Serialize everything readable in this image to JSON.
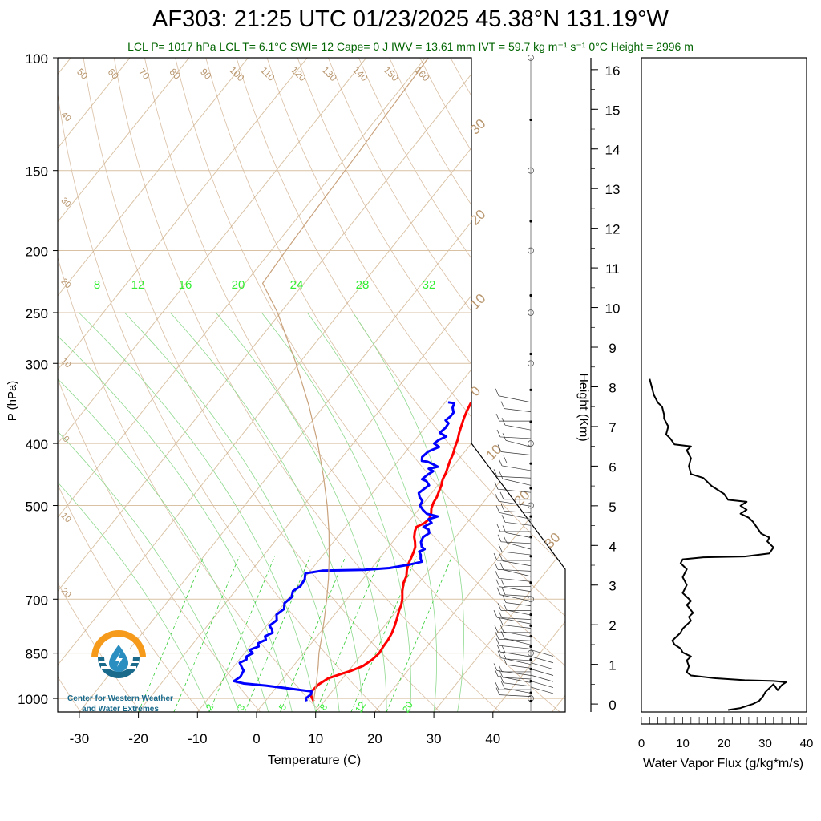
{
  "title": "AF303: 21:25 UTC 01/23/2025  45.38°N 131.19°W",
  "subtitle": "LCL P= 1017 hPa  LCL T= 6.1°C  SWI= 12  Cape= 0 J  IWV = 13.61 mm  IVT = 59.7 kg m⁻¹ s⁻¹  0°C Height = 2996 m",
  "logo": {
    "line1": "Center for Western Weather",
    "line2": "and Water Extremes",
    "colors": {
      "sun": "#f59a1b",
      "water": "#1a6a8c",
      "drop": "#2a8fc0"
    }
  },
  "colors": {
    "temperature": "#ff0000",
    "dewpoint": "#0000ff",
    "isotherm": "#d9c2a4",
    "dry_adiabat": "#c9a27c",
    "moist_adiabat": "#8fd98f",
    "mixing_ratio": "#33cc33",
    "subtitle": "#006400",
    "label_tan": "#b8966e",
    "label_green": "#33ee33"
  },
  "chart_data": [
    {
      "type": "line",
      "name": "skew-t",
      "xlabel": "Temperature (C)",
      "ylabel": "P (hPa)",
      "x_ticks": [
        -30,
        -20,
        -10,
        0,
        10,
        20,
        30,
        40
      ],
      "y_ticks": [
        100,
        150,
        200,
        250,
        300,
        400,
        500,
        700,
        850,
        1000
      ],
      "xlim": [
        -34,
        52
      ],
      "ylim": [
        1050,
        100
      ],
      "y_scale": "log",
      "isotherm_labels": [
        "50",
        "60",
        "70",
        "80",
        "90",
        "100",
        "110",
        "120",
        "130",
        "140",
        "150",
        "160"
      ],
      "right_labels": [
        "30",
        "20",
        "10",
        "0",
        "10",
        "20",
        "30"
      ],
      "left_labels": [
        "40",
        "30",
        "20",
        "10",
        "0",
        "10",
        "20"
      ],
      "mixing_top_labels": [
        "8",
        "12",
        "16",
        "20",
        "24",
        "28",
        "32"
      ],
      "mixing_bottom_labels": [
        "2",
        "3",
        "5",
        "8",
        "12",
        "20"
      ],
      "series": [
        {
          "name": "Temperature",
          "points": [
            [
              8.2,
              1010
            ],
            [
              7.0,
              990
            ],
            [
              6.5,
              975
            ],
            [
              6.8,
              950
            ],
            [
              7.6,
              930
            ],
            [
              9.3,
              915
            ],
            [
              10.5,
              905
            ],
            [
              11.8,
              890
            ],
            [
              12.5,
              870
            ],
            [
              12.8,
              850
            ],
            [
              12.6,
              830
            ],
            [
              12.5,
              810
            ],
            [
              12.2,
              790
            ],
            [
              11.7,
              770
            ],
            [
              11.1,
              750
            ],
            [
              10.4,
              730
            ],
            [
              10.0,
              715
            ],
            [
              9.4,
              700
            ],
            [
              8.3,
              680
            ],
            [
              7.4,
              660
            ],
            [
              7.0,
              645
            ],
            [
              6.2,
              630
            ],
            [
              5.6,
              615
            ],
            [
              5.2,
              600
            ],
            [
              4.9,
              590
            ],
            [
              4.5,
              580
            ],
            [
              3.8,
              570
            ],
            [
              3.0,
              560
            ],
            [
              2.3,
              548
            ],
            [
              2.0,
              540
            ],
            [
              2.8,
              533
            ],
            [
              3.1,
              525
            ],
            [
              2.7,
              515
            ],
            [
              2.0,
              505
            ],
            [
              1.6,
              495
            ],
            [
              1.4,
              485
            ],
            [
              1.0,
              475
            ],
            [
              0.6,
              465
            ],
            [
              0.0,
              455
            ],
            [
              -0.3,
              445
            ],
            [
              -0.8,
              435
            ],
            [
              -1.3,
              425
            ],
            [
              -1.7,
              415
            ],
            [
              -2.3,
              405
            ],
            [
              -2.8,
              395
            ],
            [
              -3.5,
              385
            ],
            [
              -4.1,
              375
            ],
            [
              -4.7,
              365
            ],
            [
              -5.2,
              355
            ],
            [
              -5.6,
              345
            ]
          ]
        },
        {
          "name": "Dewpoint",
          "points": [
            [
              7.0,
              1010
            ],
            [
              6.5,
              1000
            ],
            [
              6.8,
              985
            ],
            [
              6.5,
              975
            ],
            [
              3.5,
              968
            ],
            [
              1.0,
              962
            ],
            [
              -2.0,
              955
            ],
            [
              -6.0,
              948
            ],
            [
              -8.0,
              940
            ],
            [
              -7.5,
              925
            ],
            [
              -7.8,
              905
            ],
            [
              -8.5,
              895
            ],
            [
              -9.5,
              880
            ],
            [
              -8.8,
              870
            ],
            [
              -9.2,
              860
            ],
            [
              -8.6,
              850
            ],
            [
              -9.6,
              840
            ],
            [
              -8.5,
              830
            ],
            [
              -9.0,
              820
            ],
            [
              -8.2,
              810
            ],
            [
              -8.8,
              800
            ],
            [
              -8.0,
              790
            ],
            [
              -8.6,
              780
            ],
            [
              -9.5,
              770
            ],
            [
              -9.0,
              755
            ],
            [
              -9.8,
              740
            ],
            [
              -9.3,
              725
            ],
            [
              -10.0,
              710
            ],
            [
              -9.6,
              695
            ],
            [
              -10.2,
              680
            ],
            [
              -9.6,
              668
            ],
            [
              -9.8,
              652
            ],
            [
              -10.5,
              638
            ],
            [
              -8.0,
              632
            ],
            [
              -1.0,
              630
            ],
            [
              3.0,
              626
            ],
            [
              6.0,
              618
            ],
            [
              7.6,
              612
            ],
            [
              7.0,
              605
            ],
            [
              6.5,
              597
            ],
            [
              5.8,
              590
            ],
            [
              6.4,
              585
            ],
            [
              5.6,
              580
            ],
            [
              4.8,
              570
            ],
            [
              4.5,
              560
            ],
            [
              5.0,
              552
            ],
            [
              4.4,
              545
            ],
            [
              3.2,
              540
            ],
            [
              4.0,
              532
            ],
            [
              3.0,
              525
            ],
            [
              4.2,
              520
            ],
            [
              2.0,
              515
            ],
            [
              0.8,
              508
            ],
            [
              -0.3,
              500
            ],
            [
              -0.5,
              492
            ],
            [
              -1.5,
              485
            ],
            [
              -2.2,
              478
            ],
            [
              -1.8,
              470
            ],
            [
              -1.5,
              465
            ],
            [
              -2.5,
              458
            ],
            [
              -3.5,
              455
            ],
            [
              -3.2,
              448
            ],
            [
              -2.7,
              442
            ],
            [
              -3.8,
              438
            ],
            [
              -2.5,
              435
            ],
            [
              -4.0,
              430
            ],
            [
              -5.0,
              427
            ],
            [
              -6.0,
              426
            ],
            [
              -6.5,
              420
            ],
            [
              -6.2,
              412
            ],
            [
              -5.0,
              405
            ],
            [
              -6.3,
              400
            ],
            [
              -6.0,
              395
            ],
            [
              -5.2,
              390
            ],
            [
              -6.8,
              385
            ],
            [
              -6.5,
              378
            ],
            [
              -6.6,
              372
            ],
            [
              -7.5,
              368
            ],
            [
              -7.2,
              363
            ],
            [
              -7.2,
              358
            ],
            [
              -8.0,
              352
            ],
            [
              -8.4,
              346
            ],
            [
              -9.5,
              345
            ]
          ]
        },
        {
          "name": "Parcel",
          "points": [
            [
              8.2,
              1010
            ],
            [
              6.0,
              940
            ],
            [
              4.2,
              890
            ],
            [
              2.6,
              850
            ],
            [
              0.8,
              800
            ],
            [
              -1.2,
              750
            ],
            [
              -3.4,
              700
            ],
            [
              -5.9,
              650
            ],
            [
              -8.8,
              600
            ],
            [
              -12.1,
              550
            ],
            [
              -16.0,
              500
            ],
            [
              -20.6,
              450
            ],
            [
              -26.0,
              400
            ],
            [
              -32.5,
              350
            ],
            [
              -40.5,
              300
            ],
            [
              -50.5,
              250
            ],
            [
              -57.0,
              225
            ],
            [
              -57.5,
              200
            ],
            [
              -58.0,
              170
            ],
            [
              -58.5,
              140
            ],
            [
              -59.0,
              120
            ],
            [
              -59.5,
              100
            ]
          ]
        }
      ]
    },
    {
      "type": "line",
      "name": "water-vapor-flux",
      "xlabel": "Water Vapor Flux (g/kg*m/s)",
      "ylabel": "Height (Km)",
      "x_ticks": [
        0,
        10,
        20,
        30,
        40
      ],
      "y_ticks": [
        0,
        1,
        2,
        3,
        4,
        5,
        6,
        7,
        8,
        9,
        10,
        11,
        12,
        13,
        14,
        15,
        16
      ],
      "xlim": [
        0,
        40
      ],
      "ylim": [
        -0.2,
        16.3
      ],
      "series": [
        {
          "name": "Flux",
          "points": [
            [
              21,
              -0.15
            ],
            [
              24,
              -0.1
            ],
            [
              27,
              0.0
            ],
            [
              28.5,
              0.08
            ],
            [
              29.5,
              0.2
            ],
            [
              30,
              0.3
            ],
            [
              31,
              0.4
            ],
            [
              32,
              0.5
            ],
            [
              33,
              0.35
            ],
            [
              34,
              0.48
            ],
            [
              35,
              0.55
            ],
            [
              32,
              0.58
            ],
            [
              25,
              0.6
            ],
            [
              18,
              0.65
            ],
            [
              12,
              0.72
            ],
            [
              11,
              0.8
            ],
            [
              11.5,
              0.95
            ],
            [
              11,
              1.1
            ],
            [
              12,
              1.2
            ],
            [
              10,
              1.3
            ],
            [
              9.5,
              1.4
            ],
            [
              8,
              1.5
            ],
            [
              7.5,
              1.6
            ],
            [
              8.5,
              1.7
            ],
            [
              9.5,
              1.8
            ],
            [
              10,
              1.9
            ],
            [
              11,
              2.0
            ],
            [
              12,
              2.1
            ],
            [
              11.5,
              2.2
            ],
            [
              12.5,
              2.3
            ],
            [
              11,
              2.5
            ],
            [
              12,
              2.6
            ],
            [
              10,
              2.8
            ],
            [
              11,
              3.0
            ],
            [
              10,
              3.2
            ],
            [
              11,
              3.4
            ],
            [
              9.5,
              3.55
            ],
            [
              10,
              3.65
            ],
            [
              15,
              3.7
            ],
            [
              25,
              3.72
            ],
            [
              31,
              3.8
            ],
            [
              32,
              3.95
            ],
            [
              30.5,
              4.1
            ],
            [
              31,
              4.2
            ],
            [
              29,
              4.3
            ],
            [
              28,
              4.45
            ],
            [
              27,
              4.6
            ],
            [
              26,
              4.7
            ],
            [
              24,
              4.8
            ],
            [
              25.5,
              4.9
            ],
            [
              24,
              5.0
            ],
            [
              25.5,
              5.1
            ],
            [
              21,
              5.15
            ],
            [
              20,
              5.3
            ],
            [
              17,
              5.5
            ],
            [
              15,
              5.7
            ],
            [
              12,
              5.8
            ],
            [
              11.5,
              6.0
            ],
            [
              12,
              6.2
            ],
            [
              11,
              6.4
            ],
            [
              12,
              6.5
            ],
            [
              8,
              6.55
            ],
            [
              7,
              6.7
            ],
            [
              6,
              6.8
            ],
            [
              6.5,
              7.0
            ],
            [
              5.5,
              7.2
            ],
            [
              5.5,
              7.3
            ],
            [
              5,
              7.5
            ],
            [
              4,
              7.6
            ],
            [
              3.5,
              7.7
            ],
            [
              3,
              7.8
            ],
            [
              2.5,
              8.0
            ],
            [
              2,
              8.2
            ]
          ]
        }
      ]
    }
  ]
}
